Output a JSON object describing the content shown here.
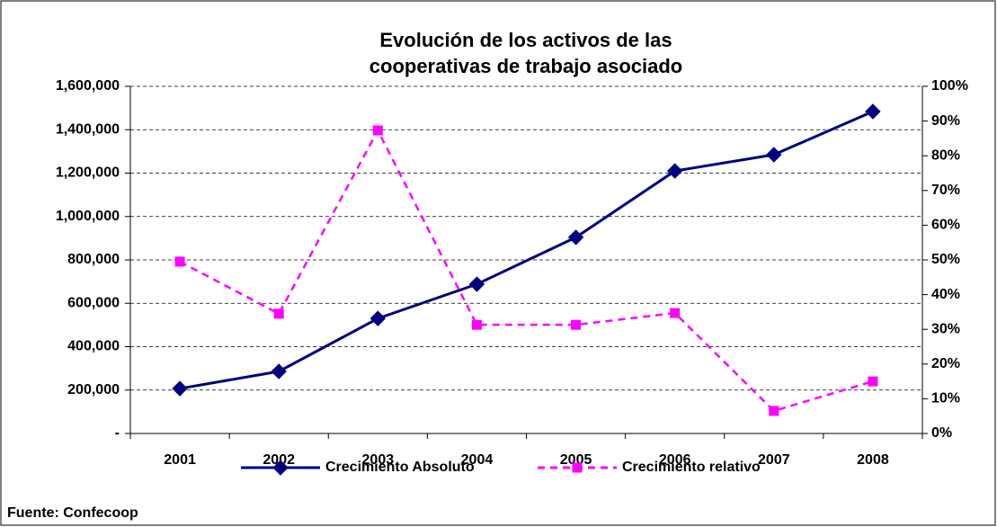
{
  "chart_data": {
    "type": "line",
    "title": [
      "Evolución de los activos de las",
      "cooperativas de trabajo asociado"
    ],
    "source": "Fuente: Confecoop",
    "categories": [
      "2001",
      "2002",
      "2003",
      "2004",
      "2005",
      "2006",
      "2007",
      "2008"
    ],
    "series": [
      {
        "name": "Crecimiento Absoluto",
        "color": "#000080",
        "marker": "diamond",
        "dash": false,
        "values": [
          207000,
          286000,
          530000,
          688000,
          904000,
          1210000,
          1285000,
          1484000
        ]
      },
      {
        "name": "Crecimiento relativo",
        "color": "#ff00ff",
        "marker": "square",
        "dash": true,
        "axis": "y2",
        "values": [
          49.5,
          34.5,
          87.3,
          31.3,
          31.3,
          34.7,
          6.5,
          15
        ]
      }
    ],
    "ylim": [
      0,
      1600000
    ],
    "yticks": [
      {
        "value": 0,
        "label": "-"
      },
      {
        "value": 200000,
        "label": "200,000"
      },
      {
        "value": 400000,
        "label": "400,000"
      },
      {
        "value": 600000,
        "label": "600,000"
      },
      {
        "value": 800000,
        "label": "800,000"
      },
      {
        "value": 1000000,
        "label": "1,000,000"
      },
      {
        "value": 1200000,
        "label": "1,200,000"
      },
      {
        "value": 1400000,
        "label": "1,400,000"
      },
      {
        "value": 1600000,
        "label": "1,600,000"
      }
    ],
    "y2lim": [
      0,
      100
    ],
    "y2ticks": [
      {
        "value": 0,
        "label": "0%"
      },
      {
        "value": 10,
        "label": "10%"
      },
      {
        "value": 20,
        "label": "20%"
      },
      {
        "value": 30,
        "label": "30%"
      },
      {
        "value": 40,
        "label": "40%"
      },
      {
        "value": 50,
        "label": "50%"
      },
      {
        "value": 60,
        "label": "60%"
      },
      {
        "value": 70,
        "label": "70%"
      },
      {
        "value": 80,
        "label": "80%"
      },
      {
        "value": 90,
        "label": "90%"
      },
      {
        "value": 100,
        "label": "100%"
      }
    ],
    "grid": true,
    "legend": "bottom"
  }
}
